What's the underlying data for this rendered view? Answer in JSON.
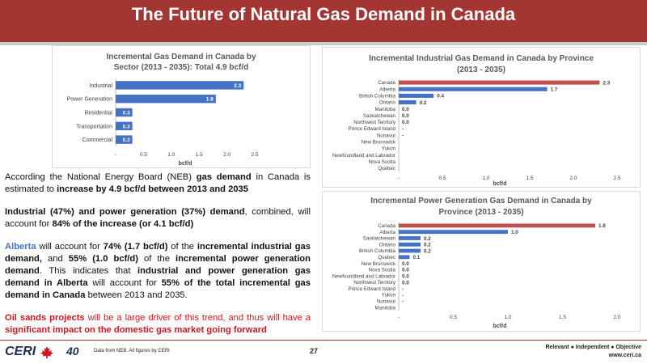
{
  "page": {
    "title": "The Future of Natural Gas Demand in Canada",
    "page_number": "27",
    "footer_note": "Data from NEB. All figures by CERI",
    "tagline": "Relevant ● Independent ● Objective",
    "url": "www.ceri.ca",
    "logo_text": "CERI",
    "logo_years": "40"
  },
  "text": {
    "p1_a": "According the National Energy Board (NEB) ",
    "p1_b": "gas demand",
    "p1_c": " in Canada is estimated to ",
    "p1_d": "increase by 4.9 bcf/d between 2013 and 2035",
    "p2_a": "Industrial (47%) and power generation (37%) demand",
    "p2_b": ", combined, will account for ",
    "p2_c": "84% of the increase (or 4.1 bcf/d)",
    "p3_a": "Alberta",
    "p3_b": " will account for ",
    "p3_c": "74% (1.7 bcf/d)",
    "p3_d": " of the ",
    "p3_e": "incremental industrial gas demand,",
    "p3_f": " and ",
    "p3_g": "55% (1.0 bcf/d)",
    "p3_h": " of  the ",
    "p3_i": "incremental power generation demand",
    "p3_j": ". This indicates that ",
    "p3_k": "industrial and power generation gas demand in Alberta",
    "p3_l": " will account for ",
    "p3_m": "55% of the total incremental gas demand in Canada",
    "p3_n": " between 2013 and 2035.",
    "p4_a": "Oil sands projects",
    "p4_b": " will be a large driver of this trend, and thus will have a ",
    "p4_c": "significant impact on the domestic gas market going forward"
  },
  "colors": {
    "banner": "#a33533",
    "bar_blue": "#4472c4",
    "bar_red": "#c0504d",
    "accent_blue": "#3f73c8",
    "accent_red": "#d0161e"
  },
  "chart_data": [
    {
      "type": "bar",
      "orientation": "horizontal",
      "title": "Incremental Gas Demand in Canada by Sector (2013 - 2035): Total 4.9 bcf/d",
      "title_lines": [
        "Incremental Gas Demand in Canada by",
        "Sector (2013 - 2035): Total 4.9 bcf/d"
      ],
      "categories": [
        "Industrial",
        "Power Generation",
        "Residential",
        "Transportation",
        "Commercial"
      ],
      "values": [
        2.3,
        1.8,
        0.3,
        0.3,
        0.3
      ],
      "value_labels": [
        "2.3",
        "1.8",
        "0.3",
        "0.3",
        "0.3"
      ],
      "xlabel": "bcf/d",
      "xlim": [
        0,
        2.5
      ],
      "xticks": [
        0,
        0.5,
        1,
        1.5,
        2,
        2.5
      ],
      "xtick_labels": [
        "-",
        "0.5",
        "1.0",
        "1.5",
        "2.0",
        "2.5"
      ],
      "label_position": "inside",
      "grid": false,
      "highlight": []
    },
    {
      "type": "bar",
      "orientation": "horizontal",
      "title": "Incremental Industrial Gas Demand in Canada by Province (2013 - 2035)",
      "title_lines": [
        "Incremental Industrial Gas Demand in Canada by Province",
        "(2013 - 2035)"
      ],
      "categories": [
        "Canada",
        "Alberta",
        "British Columbia",
        "Ontario",
        "Manitoba",
        "Saskatchewan",
        "Northwest Territory",
        "Prince Edward Island",
        "Nunavut",
        "New Brunswick",
        "Yukon",
        "Newfoundland and Labrador",
        "Nova Scotia",
        "Quebec"
      ],
      "values": [
        2.3,
        1.7,
        0.4,
        0.2,
        0.0,
        0.0,
        0.0,
        0,
        0,
        0,
        0,
        0,
        0,
        0
      ],
      "value_labels": [
        "2.3",
        "1.7",
        "0.4",
        "0.2",
        "0.0",
        "0.0",
        "0.0",
        "-",
        "-",
        "",
        "",
        "",
        "",
        ""
      ],
      "xlabel": "bcf/d",
      "xlim": [
        0,
        2.5
      ],
      "xticks": [
        0,
        0.5,
        1,
        1.5,
        2,
        2.5
      ],
      "xtick_labels": [
        "-",
        "0.5",
        "1.0",
        "1.5",
        "2.0",
        "2.5"
      ],
      "label_position": "outside",
      "grid": false,
      "highlight": [
        0
      ]
    },
    {
      "type": "bar",
      "orientation": "horizontal",
      "title": "Incremental Power Generation Gas Demand in Canada by Province (2013 - 2035)",
      "title_lines": [
        "Incremental Power Generation Gas Demand in Canada by",
        "Province (2013 - 2035)"
      ],
      "categories": [
        "Canada",
        "Alberta",
        "Saskatchewan",
        "Ontario",
        "British Columbia",
        "Quebec",
        "New Brunswick",
        "Nova Scotia",
        "Newfoundland and Labrador",
        "Northwest Territory",
        "Prince Edward Island",
        "Yukon",
        "Nunavut",
        "Manitoba"
      ],
      "values": [
        1.8,
        1.0,
        0.2,
        0.2,
        0.2,
        0.1,
        0.0,
        0.0,
        0.0,
        0.0,
        0,
        0,
        0,
        0
      ],
      "value_labels": [
        "1.8",
        "1.0",
        "0.2",
        "0.2",
        "0.2",
        "0.1",
        "0.0",
        "0.0",
        "0.0",
        "0.0",
        "-",
        "-",
        "-",
        ""
      ],
      "xlabel": "bcf/d",
      "xlim": [
        0,
        2.0
      ],
      "xticks": [
        0,
        0.5,
        1,
        1.5,
        2
      ],
      "xtick_labels": [
        "-",
        "0.5",
        "1.0",
        "1.5",
        "2.0"
      ],
      "label_position": "outside",
      "grid": false,
      "highlight": [
        0
      ]
    }
  ]
}
